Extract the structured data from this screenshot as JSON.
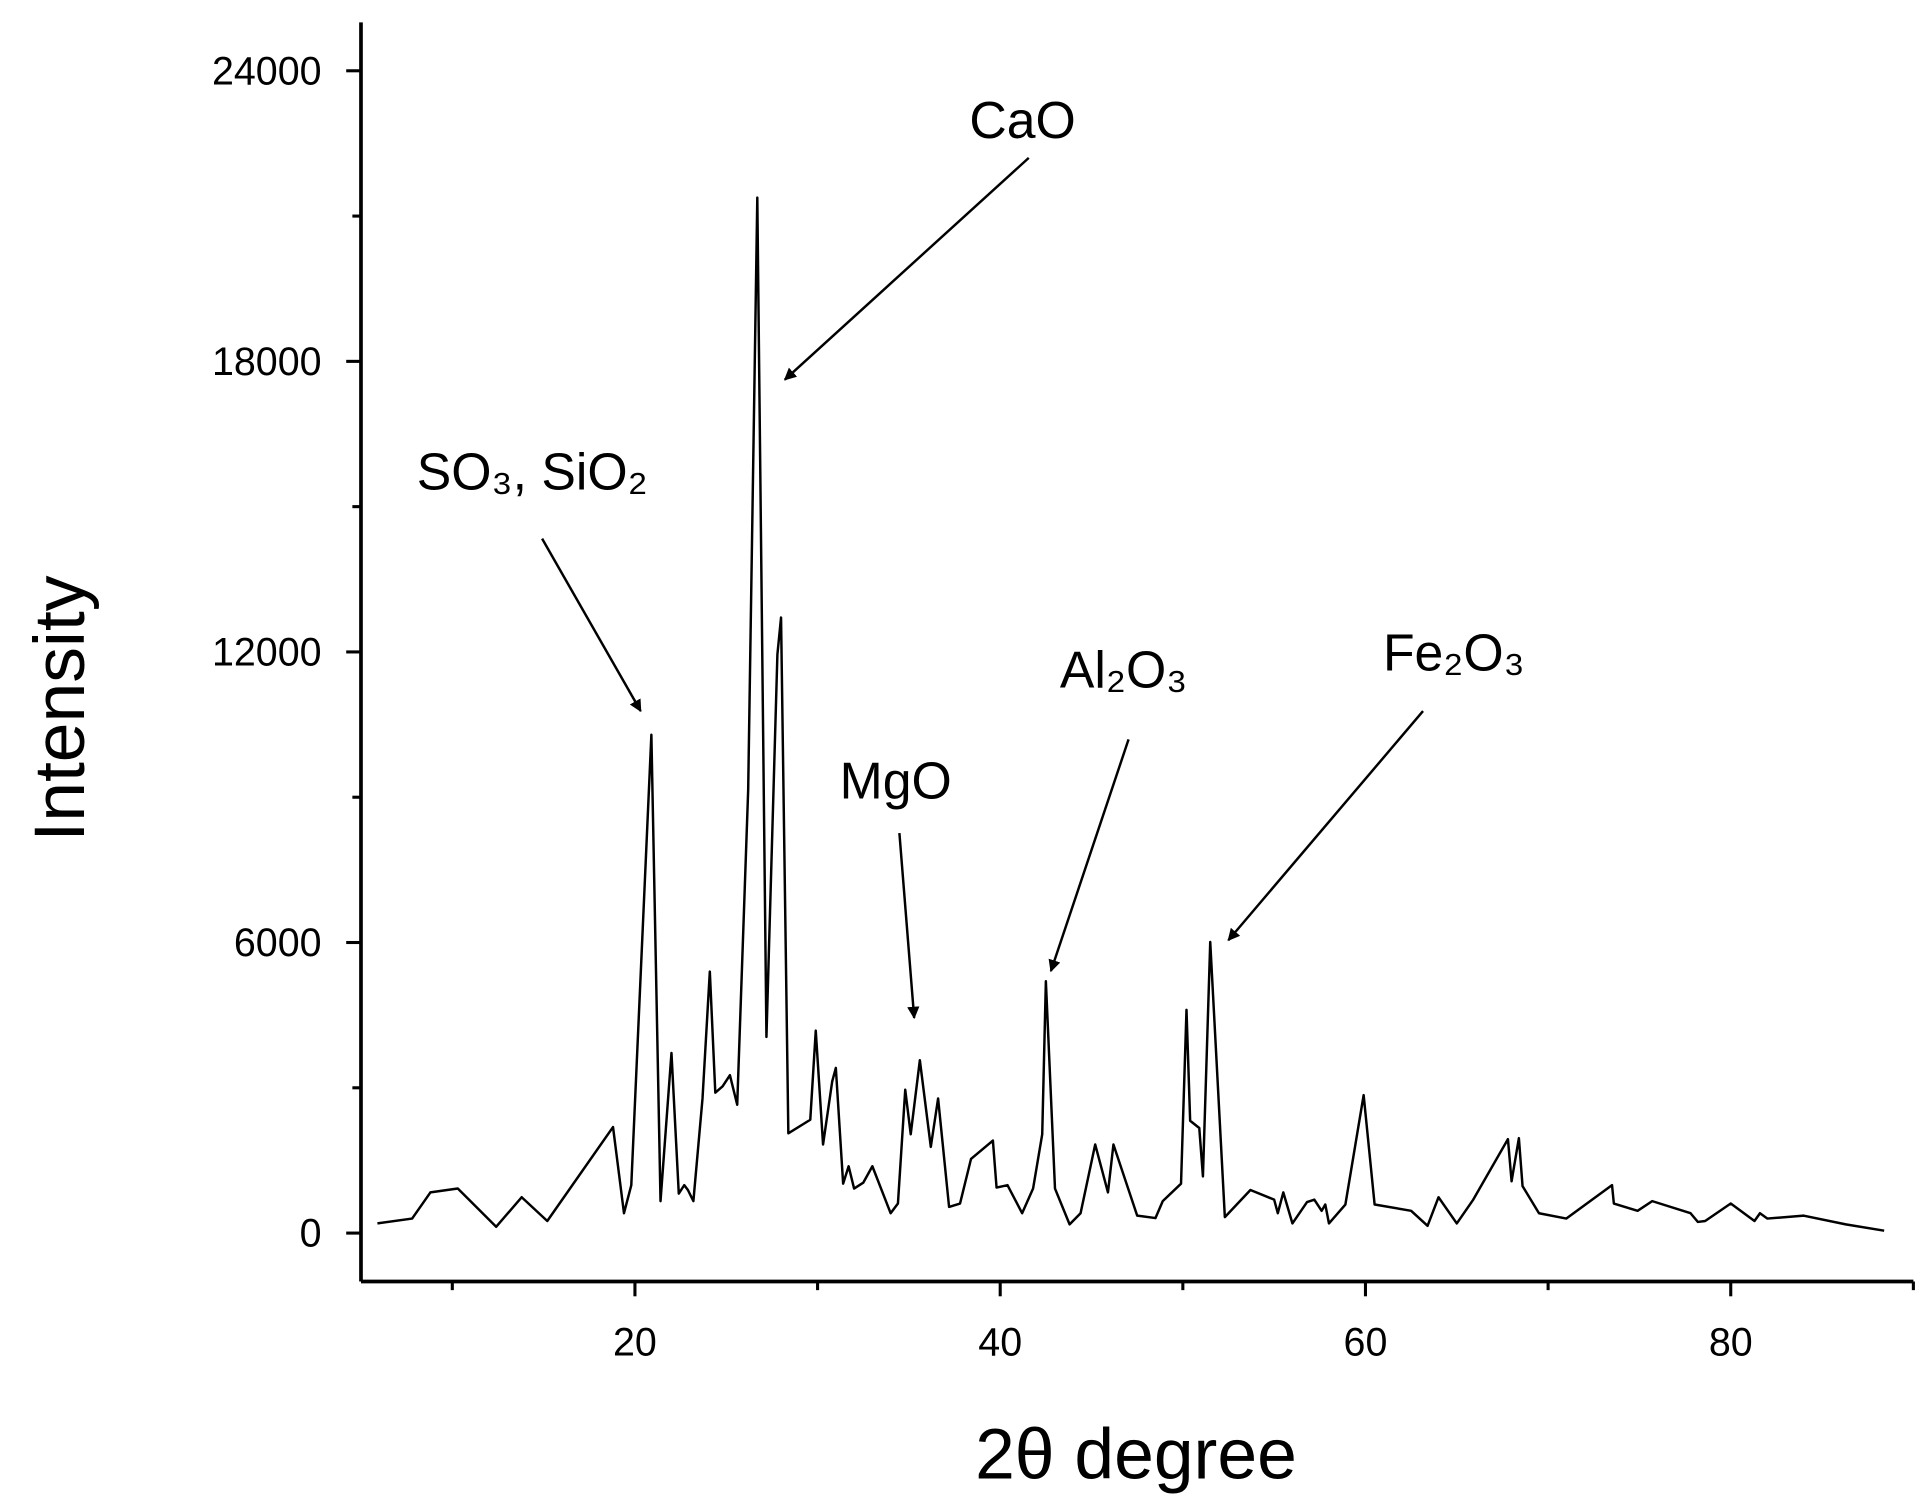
{
  "chart_data": {
    "type": "line",
    "xlabel": "2θ degree",
    "ylabel": "Intensity",
    "xlim": [
      5,
      90
    ],
    "ylim": [
      -1000,
      25000
    ],
    "xticks": [
      20,
      40,
      60,
      80
    ],
    "yticks": [
      0,
      6000,
      12000,
      18000,
      24000
    ],
    "xminor": [
      10,
      30,
      50,
      70,
      90
    ],
    "yminor": [
      3000,
      9000,
      15000,
      21000
    ],
    "annotations": [
      "CaO",
      "SO₃, SiO₂",
      "MgO",
      "Al₂O₃",
      "Fe₂O₃"
    ],
    "series": [
      {
        "color": "#000000",
        "x": [
          5.9,
          7.8,
          8.8,
          10.3,
          12.4,
          13.8,
          15.2,
          18.8,
          19.4,
          19.8,
          20.9,
          21.4,
          22.0,
          22.4,
          22.7,
          22.9,
          23.2,
          23.7,
          24.1,
          24.4,
          24.8,
          25.2,
          25.6,
          26.2,
          26.7,
          27.2,
          27.8,
          28.0,
          28.4,
          29.6,
          29.9,
          30.3,
          30.8,
          31.0,
          31.4,
          31.7,
          32.0,
          32.5,
          33.0,
          34.0,
          34.4,
          34.8,
          35.1,
          35.6,
          36.2,
          36.6,
          37.2,
          37.8,
          38.4,
          39.6,
          39.8,
          40.4,
          41.2,
          41.8,
          42.3,
          42.5,
          43.0,
          43.8,
          44.4,
          45.2,
          45.9,
          46.2,
          47.5,
          48.5,
          48.9,
          49.9,
          50.2,
          50.4,
          50.9,
          51.1,
          51.5,
          52.3,
          53.7,
          55.0,
          55.2,
          55.5,
          56.0,
          56.8,
          57.2,
          57.6,
          57.8,
          58.0,
          58.9,
          59.9,
          60.5,
          62.5,
          63.4,
          64.0,
          65.0,
          65.9,
          67.8,
          68.0,
          68.4,
          68.6,
          69.5,
          71.0,
          73.5,
          73.6,
          74.9,
          75.7,
          77.8,
          78.2,
          78.6,
          80.0,
          81.3,
          81.6,
          82.0,
          84.0,
          86.3,
          88.4
        ],
        "values": [
          200,
          300,
          840,
          920,
          130,
          740,
          250,
          2190,
          410,
          990,
          10290,
          660,
          3720,
          815,
          990,
          890,
          660,
          2780,
          5400,
          2900,
          3030,
          3260,
          2650,
          9150,
          21380,
          4050,
          11950,
          12710,
          2060,
          2340,
          4180,
          1830,
          3130,
          3410,
          1020,
          1380,
          920,
          1040,
          1380,
          410,
          610,
          2960,
          2040,
          3570,
          1780,
          2780,
          540,
          610,
          1530,
          1910,
          940,
          990,
          410,
          920,
          2040,
          5200,
          920,
          180,
          410,
          1830,
          840,
          1830,
          360,
          310,
          660,
          1020,
          4610,
          2320,
          2170,
          1170,
          6010,
          330,
          890,
          690,
          410,
          840,
          200,
          640,
          690,
          460,
          590,
          200,
          590,
          2850,
          590,
          460,
          150,
          740,
          200,
          690,
          1940,
          1070,
          1960,
          970,
          410,
          300,
          990,
          610,
          460,
          660,
          410,
          230,
          250,
          610,
          250,
          410,
          300,
          360,
          180,
          50
        ]
      }
    ]
  }
}
